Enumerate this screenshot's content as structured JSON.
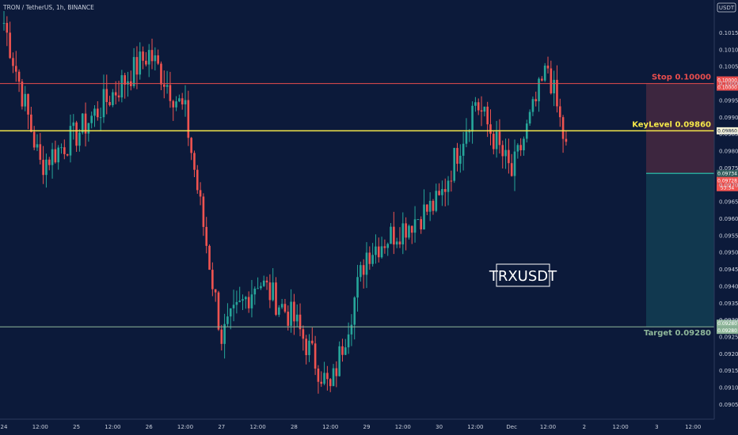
{
  "header": {
    "title": "TRON / TetherUS, 1h, BINANCE"
  },
  "watermark": "TRXUSDT",
  "colors": {
    "background": "#0c1a3a",
    "up": "#26a69a",
    "down": "#ef5350",
    "stop": "#e84d4d",
    "keylevel": "#f5e84a",
    "target": "#8fb79a",
    "current": "#2f5c5c"
  },
  "chart_data": {
    "type": "candlestick",
    "title": "TRON / TetherUS, 1h, BINANCE",
    "ylim": [
      0.0903,
      0.10205
    ],
    "currency": "USDT",
    "grid": false,
    "x_ticks": [
      "24",
      "12:00",
      "25",
      "12:00",
      "26",
      "12:00",
      "27",
      "12:00",
      "28",
      "12:00",
      "29",
      "12:00",
      "30",
      "12:00",
      "Dec",
      "12:00",
      "2",
      "12:00",
      "3",
      "12:00"
    ],
    "y_ticks": [
      "0.10150",
      "0.10100",
      "0.10050",
      "0.10000",
      "0.09950",
      "0.09900",
      "0.09850",
      "0.09800",
      "0.09750",
      "0.09700",
      "0.09650",
      "0.09600",
      "0.09550",
      "0.09500",
      "0.09450",
      "0.09400",
      "0.09350",
      "0.09300",
      "0.09250",
      "0.09200",
      "0.09150",
      "0.09100",
      "0.09050"
    ],
    "levels": [
      {
        "name": "Stop",
        "label": "Stop 0.10000",
        "value": 0.1,
        "tags": [
          "0.10000",
          "0.10000"
        ]
      },
      {
        "name": "KeyLevel",
        "label": "KeyLevel 0.09860",
        "value": 0.0986,
        "tags": [
          "0.09860"
        ]
      },
      {
        "name": "Target",
        "label": "Target 0.09280",
        "value": 0.0928,
        "tags": [
          "0.09280",
          "0.09280"
        ]
      }
    ],
    "position": {
      "entry": 0.09734,
      "stop": 0.1,
      "target": 0.0928
    },
    "last_price": {
      "value": "0.09734",
      "tags": [
        "0.09734",
        "0.09728",
        "53:34"
      ]
    },
    "key_closes": [
      {
        "time": "24",
        "close": 0.1018
      },
      {
        "time": "24 12:00",
        "close": 0.0976
      },
      {
        "time": "25",
        "close": 0.0985
      },
      {
        "time": "26",
        "close": 0.1009
      },
      {
        "time": "26 12:00",
        "close": 0.0991
      },
      {
        "time": "27",
        "close": 0.0925
      },
      {
        "time": "27 12:00",
        "close": 0.0942
      },
      {
        "time": "28",
        "close": 0.093
      },
      {
        "time": "28 12:00",
        "close": 0.0909
      },
      {
        "time": "29",
        "close": 0.095
      },
      {
        "time": "30",
        "close": 0.0965
      },
      {
        "time": "30 12:00",
        "close": 0.0995
      },
      {
        "time": "Dec",
        "close": 0.0973
      },
      {
        "time": "Dec 12:00",
        "close": 0.1005
      },
      {
        "time": "2",
        "close": 0.0956
      },
      {
        "time": "2 12:00",
        "close": 0.09734
      }
    ]
  }
}
